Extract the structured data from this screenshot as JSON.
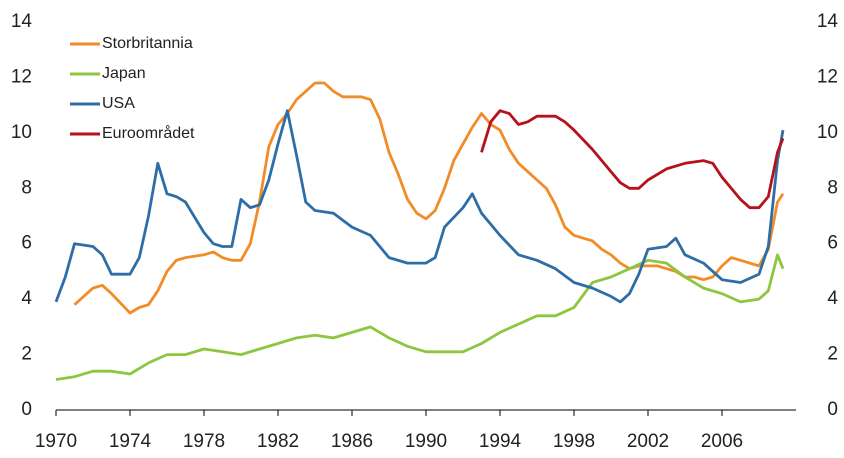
{
  "chart_data": {
    "type": "line",
    "xlim": [
      1970,
      2010
    ],
    "xticks": [
      1970,
      1974,
      1978,
      1982,
      1986,
      1990,
      1994,
      1998,
      2002,
      2006
    ],
    "ylim": [
      0,
      14
    ],
    "yticks": [
      0,
      2,
      4,
      6,
      8,
      10,
      12,
      14
    ],
    "y2lim": [
      0,
      14
    ],
    "y2ticks": [
      0,
      2,
      4,
      6,
      8,
      10,
      12,
      14
    ],
    "legend": "upper left",
    "series": [
      {
        "name": "Storbritannia",
        "color": "#f28c28",
        "x": [
          1971,
          1972,
          1972.5,
          1973,
          1974,
          1974.5,
          1975,
          1975.5,
          1976,
          1976.5,
          1977,
          1978,
          1978.5,
          1979,
          1979.5,
          1980,
          1980.5,
          1981,
          1981.5,
          1982,
          1982.5,
          1983,
          1983.5,
          1984,
          1984.5,
          1985,
          1985.5,
          1986,
          1986.5,
          1987,
          1987.5,
          1988,
          1988.5,
          1989,
          1989.5,
          1990,
          1990.5,
          1991,
          1991.5,
          1992,
          1992.5,
          1993,
          1993.5,
          1994,
          1994.5,
          1995,
          1995.5,
          1996,
          1996.5,
          1997,
          1997.5,
          1998,
          1998.5,
          1999,
          1999.5,
          2000,
          2000.5,
          2001,
          2001.5,
          2002,
          2002.5,
          2003,
          2003.5,
          2004,
          2004.5,
          2005,
          2005.5,
          2006,
          2006.5,
          2007,
          2007.5,
          2008,
          2008.5,
          2009,
          2009.3
        ],
        "values": [
          3.8,
          4.4,
          4.5,
          4.2,
          3.5,
          3.7,
          3.8,
          4.3,
          5.0,
          5.4,
          5.5,
          5.6,
          5.7,
          5.5,
          5.4,
          5.4,
          6.0,
          7.5,
          9.5,
          10.3,
          10.7,
          11.2,
          11.5,
          11.8,
          11.8,
          11.5,
          11.3,
          11.3,
          11.3,
          11.2,
          10.5,
          9.3,
          8.5,
          7.6,
          7.1,
          6.9,
          7.2,
          8.0,
          9.0,
          9.6,
          10.2,
          10.7,
          10.3,
          10.1,
          9.4,
          8.9,
          8.6,
          8.3,
          8.0,
          7.4,
          6.6,
          6.3,
          6.2,
          6.1,
          5.8,
          5.6,
          5.3,
          5.1,
          5.2,
          5.2,
          5.2,
          5.1,
          5.0,
          4.8,
          4.8,
          4.7,
          4.8,
          5.2,
          5.5,
          5.4,
          5.3,
          5.2,
          5.8,
          7.5,
          7.8
        ]
      },
      {
        "name": "Japan",
        "color": "#8dc63f",
        "x": [
          1970,
          1971,
          1972,
          1973,
          1974,
          1975,
          1976,
          1977,
          1978,
          1979,
          1980,
          1981,
          1982,
          1983,
          1984,
          1985,
          1986,
          1987,
          1988,
          1989,
          1990,
          1991,
          1992,
          1993,
          1994,
          1995,
          1996,
          1997,
          1998,
          1999,
          2000,
          2001,
          2002,
          2003,
          2004,
          2005,
          2006,
          2007,
          2008,
          2008.5,
          2009,
          2009.3
        ],
        "values": [
          1.1,
          1.2,
          1.4,
          1.4,
          1.3,
          1.7,
          2.0,
          2.0,
          2.2,
          2.1,
          2.0,
          2.2,
          2.4,
          2.6,
          2.7,
          2.6,
          2.8,
          3.0,
          2.6,
          2.3,
          2.1,
          2.1,
          2.1,
          2.4,
          2.8,
          3.1,
          3.4,
          3.4,
          3.7,
          4.6,
          4.8,
          5.1,
          5.4,
          5.3,
          4.8,
          4.4,
          4.2,
          3.9,
          4.0,
          4.3,
          5.6,
          5.1
        ]
      },
      {
        "name": "USA",
        "color": "#2e6ea6",
        "x": [
          1970,
          1970.5,
          1971,
          1972,
          1972.5,
          1973,
          1974,
          1974.5,
          1975,
          1975.5,
          1976,
          1976.5,
          1977,
          1978,
          1978.5,
          1979,
          1979.5,
          1980,
          1980.5,
          1981,
          1981.5,
          1982,
          1982.5,
          1983,
          1983.5,
          1984,
          1985,
          1986,
          1987,
          1988,
          1989,
          1990,
          1990.5,
          1991,
          1992,
          1992.5,
          1993,
          1994,
          1995,
          1996,
          1997,
          1998,
          1999,
          2000,
          2000.5,
          2001,
          2001.5,
          2002,
          2003,
          2003.5,
          2004,
          2005,
          2006,
          2007,
          2008,
          2008.5,
          2009,
          2009.3
        ],
        "values": [
          3.9,
          4.8,
          6.0,
          5.9,
          5.6,
          4.9,
          4.9,
          5.5,
          7.0,
          8.9,
          7.8,
          7.7,
          7.5,
          6.4,
          6.0,
          5.9,
          5.9,
          7.6,
          7.3,
          7.4,
          8.3,
          9.6,
          10.8,
          9.2,
          7.5,
          7.2,
          7.1,
          6.6,
          6.3,
          5.5,
          5.3,
          5.3,
          5.5,
          6.6,
          7.3,
          7.8,
          7.1,
          6.3,
          5.6,
          5.4,
          5.1,
          4.6,
          4.4,
          4.1,
          3.9,
          4.2,
          4.9,
          5.8,
          5.9,
          6.2,
          5.6,
          5.3,
          4.7,
          4.6,
          4.9,
          5.9,
          9.0,
          10.1
        ]
      },
      {
        "name": "Euroområdet",
        "color": "#b5121b",
        "x": [
          1993,
          1993.5,
          1994,
          1994.5,
          1995,
          1995.5,
          1996,
          1997,
          1997.5,
          1998,
          1999,
          2000,
          2000.5,
          2001,
          2001.5,
          2002,
          2003,
          2004,
          2005,
          2005.5,
          2006,
          2007,
          2007.5,
          2008,
          2008.5,
          2009,
          2009.3
        ],
        "values": [
          9.3,
          10.4,
          10.8,
          10.7,
          10.3,
          10.4,
          10.6,
          10.6,
          10.4,
          10.1,
          9.4,
          8.6,
          8.2,
          8.0,
          8.0,
          8.3,
          8.7,
          8.9,
          9.0,
          8.9,
          8.4,
          7.6,
          7.3,
          7.3,
          7.7,
          9.3,
          9.8
        ]
      }
    ]
  }
}
